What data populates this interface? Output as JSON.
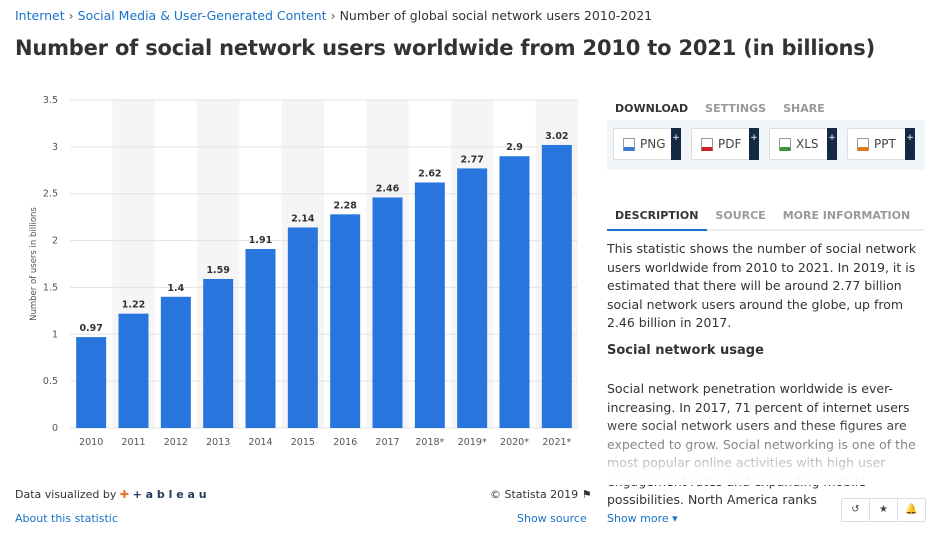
{
  "breadcrumb": [
    "Internet",
    "Social Media & User-Generated Content",
    "Number of global social network users 2010-2021"
  ],
  "title": "Number of social network users worldwide from 2010 to 2021 (in billions)",
  "download_tabs": [
    "DOWNLOAD",
    "SETTINGS",
    "SHARE"
  ],
  "downloads": [
    {
      "label": "PNG",
      "color": "#3a7bd5"
    },
    {
      "label": "PDF",
      "color": "#cc2222"
    },
    {
      "label": "XLS",
      "color": "#3a9a3a"
    },
    {
      "label": "PPT",
      "color": "#e07a1f"
    }
  ],
  "plus": "+",
  "info_tabs": [
    "DESCRIPTION",
    "SOURCE",
    "MORE INFORMATION"
  ],
  "description": {
    "p1": "This statistic shows the number of social network users worldwide from 2010 to 2021. In 2019, it is estimated that there will be around 2.77 billion social network users around the globe, up from 2.46 billion in 2017.",
    "heading": "Social network usage",
    "p2": "Social network penetration worldwide is ever-increasing. In 2017, 71 percent of internet users were social network users and these figures are expected to grow. Social networking is one of the most popular online activities with high user engagement rates and expanding mobile possibilities. North America ranks"
  },
  "footer": {
    "visualized_by": "Data visualized by",
    "tableau": "+ a b l e a u",
    "copyright": "© Statista 2019",
    "about": "About this statistic",
    "show_source": "Show source",
    "show_more": "Show more ▾"
  },
  "tools": [
    "↺",
    "★",
    "🔔"
  ],
  "chart_data": {
    "type": "bar",
    "title": "",
    "xlabel": "",
    "ylabel": "Number of users in billions",
    "categories": [
      "2010",
      "2011",
      "2012",
      "2013",
      "2014",
      "2015",
      "2016",
      "2017",
      "2018*",
      "2019*",
      "2020*",
      "2021*"
    ],
    "values": [
      0.97,
      1.22,
      1.4,
      1.59,
      1.91,
      2.14,
      2.28,
      2.46,
      2.62,
      2.77,
      2.9,
      3.02
    ],
    "ylim": [
      0,
      3.5
    ],
    "yticks": [
      "0",
      "0.5",
      "1",
      "1.5",
      "2",
      "2.5",
      "3",
      "3.5"
    ],
    "grid": true,
    "bar_color": "#2876dd"
  }
}
